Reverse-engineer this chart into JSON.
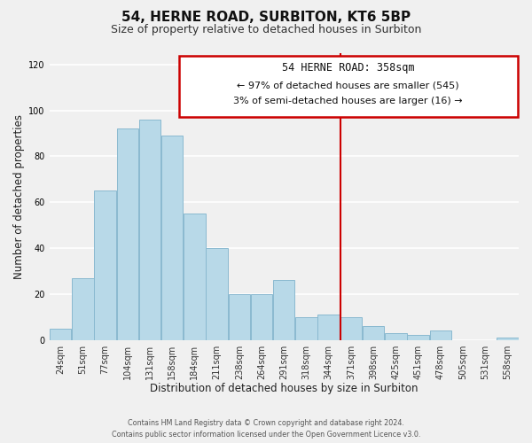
{
  "title": "54, HERNE ROAD, SURBITON, KT6 5BP",
  "subtitle": "Size of property relative to detached houses in Surbiton",
  "xlabel": "Distribution of detached houses by size in Surbiton",
  "ylabel": "Number of detached properties",
  "footer_line1": "Contains HM Land Registry data © Crown copyright and database right 2024.",
  "footer_line2": "Contains public sector information licensed under the Open Government Licence v3.0.",
  "bar_labels": [
    "24sqm",
    "51sqm",
    "77sqm",
    "104sqm",
    "131sqm",
    "158sqm",
    "184sqm",
    "211sqm",
    "238sqm",
    "264sqm",
    "291sqm",
    "318sqm",
    "344sqm",
    "371sqm",
    "398sqm",
    "425sqm",
    "451sqm",
    "478sqm",
    "505sqm",
    "531sqm",
    "558sqm"
  ],
  "bar_values": [
    5,
    27,
    65,
    92,
    96,
    89,
    55,
    40,
    20,
    20,
    26,
    10,
    11,
    10,
    6,
    3,
    2,
    4,
    0,
    0,
    1
  ],
  "bar_color": "#b8d9e8",
  "bar_edge_color": "#8ab9d0",
  "vline_color": "#cc0000",
  "annotation_title": "54 HERNE ROAD: 358sqm",
  "annotation_line1": "← 97% of detached houses are smaller (545)",
  "annotation_line2": "3% of semi-detached houses are larger (16) →",
  "annotation_box_edge": "#cc0000",
  "ylim": [
    0,
    125
  ],
  "yticks": [
    0,
    20,
    40,
    60,
    80,
    100,
    120
  ],
  "bg_color": "#f0f0f0",
  "grid_color": "#ffffff",
  "title_fontsize": 11,
  "subtitle_fontsize": 9,
  "axis_label_fontsize": 8.5,
  "tick_fontsize": 7
}
